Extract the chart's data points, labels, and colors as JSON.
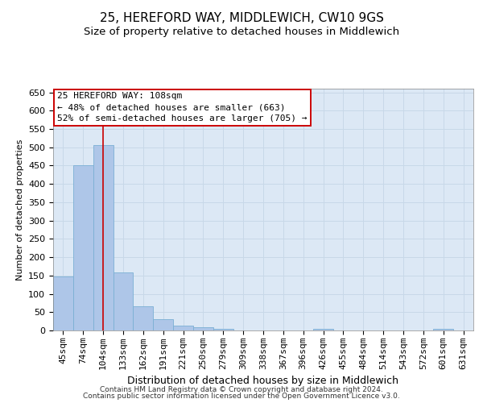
{
  "title1": "25, HEREFORD WAY, MIDDLEWICH, CW10 9GS",
  "title2": "Size of property relative to detached houses in Middlewich",
  "xlabel": "Distribution of detached houses by size in Middlewich",
  "ylabel": "Number of detached properties",
  "categories": [
    "45sqm",
    "74sqm",
    "104sqm",
    "133sqm",
    "162sqm",
    "191sqm",
    "221sqm",
    "250sqm",
    "279sqm",
    "309sqm",
    "338sqm",
    "367sqm",
    "396sqm",
    "426sqm",
    "455sqm",
    "484sqm",
    "514sqm",
    "543sqm",
    "572sqm",
    "601sqm",
    "631sqm"
  ],
  "values": [
    147,
    450,
    507,
    158,
    66,
    30,
    13,
    8,
    5,
    0,
    0,
    0,
    0,
    5,
    0,
    0,
    0,
    0,
    0,
    5,
    0
  ],
  "bar_color": "#aec6e8",
  "bar_edge_color": "#7aafd4",
  "vertical_line_x": 2,
  "vertical_line_color": "#cc0000",
  "annotation_line1": "25 HEREFORD WAY: 108sqm",
  "annotation_line2": "← 48% of detached houses are smaller (663)",
  "annotation_line3": "52% of semi-detached houses are larger (705) →",
  "annotation_box_color": "#ffffff",
  "annotation_box_edge_color": "#cc0000",
  "ylim": [
    0,
    660
  ],
  "yticks": [
    0,
    50,
    100,
    150,
    200,
    250,
    300,
    350,
    400,
    450,
    500,
    550,
    600,
    650
  ],
  "grid_color": "#c8d8e8",
  "background_color": "#dce8f5",
  "footer1": "Contains HM Land Registry data © Crown copyright and database right 2024.",
  "footer2": "Contains public sector information licensed under the Open Government Licence v3.0.",
  "title1_fontsize": 11,
  "title2_fontsize": 9.5,
  "xlabel_fontsize": 9,
  "ylabel_fontsize": 8,
  "tick_fontsize": 8,
  "annotation_fontsize": 8,
  "footer_fontsize": 6.5
}
